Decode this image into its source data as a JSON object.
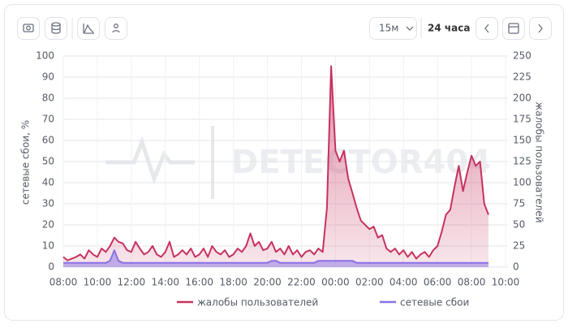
{
  "toolbar": {
    "interval": "15м",
    "range": "24 часа"
  },
  "watermark": "DETECTOR404",
  "chart_data": {
    "type": "line",
    "x": [
      8,
      8.25,
      8.5,
      8.75,
      9,
      9.25,
      9.5,
      9.75,
      10,
      10.25,
      10.5,
      10.75,
      11,
      11.25,
      11.5,
      11.75,
      12,
      12.25,
      12.5,
      12.75,
      13,
      13.25,
      13.5,
      13.75,
      14,
      14.25,
      14.5,
      14.75,
      15,
      15.25,
      15.5,
      15.75,
      16,
      16.25,
      16.5,
      16.75,
      17,
      17.25,
      17.5,
      17.75,
      18,
      18.25,
      18.5,
      18.75,
      19,
      19.25,
      19.5,
      19.75,
      20,
      20.25,
      20.5,
      20.75,
      21,
      21.25,
      21.5,
      21.75,
      22,
      22.25,
      22.5,
      22.75,
      23,
      23.25,
      23.5,
      23.75,
      24,
      24.25,
      24.5,
      24.75,
      25,
      25.25,
      25.5,
      25.75,
      26,
      26.25,
      26.5,
      26.75,
      27,
      27.25,
      27.5,
      27.75,
      28,
      28.25,
      28.5,
      28.75,
      29,
      29.25,
      29.5,
      29.75,
      30,
      30.25,
      30.5,
      30.75,
      31,
      31.25,
      31.5,
      31.75,
      32,
      32.25,
      32.5,
      32.75,
      33
    ],
    "xlim": [
      8,
      34
    ],
    "xticks": [
      {
        "value": 8,
        "label": "08:00"
      },
      {
        "value": 10,
        "label": "10:00"
      },
      {
        "value": 12,
        "label": "12:00"
      },
      {
        "value": 14,
        "label": "14:00"
      },
      {
        "value": 16,
        "label": "16:00"
      },
      {
        "value": 18,
        "label": "18:00"
      },
      {
        "value": 20,
        "label": "20:00"
      },
      {
        "value": 22,
        "label": "22:00"
      },
      {
        "value": 24,
        "label": "00:00"
      },
      {
        "value": 26,
        "label": "02:00"
      },
      {
        "value": 28,
        "label": "04:00"
      },
      {
        "value": 30,
        "label": "06:00"
      },
      {
        "value": 32,
        "label": "08:00"
      },
      {
        "value": 34,
        "label": "10:00"
      }
    ],
    "ylabel": "сетевые сбои, %",
    "ylim": [
      0,
      100
    ],
    "yticks": [
      0,
      10,
      20,
      30,
      40,
      50,
      60,
      70,
      80,
      90,
      100
    ],
    "y2label": "жалобы пользователей",
    "y2lim": [
      0,
      250
    ],
    "y2ticks": [
      0,
      25,
      50,
      75,
      100,
      125,
      150,
      175,
      200,
      225,
      250
    ],
    "grid": true,
    "series": [
      {
        "name": "жалобы пользователей",
        "color": "#c7325f",
        "axis": "y2",
        "values": [
          12,
          8,
          10,
          12,
          15,
          10,
          20,
          15,
          12,
          22,
          18,
          25,
          35,
          30,
          28,
          20,
          18,
          30,
          22,
          15,
          18,
          25,
          15,
          12,
          18,
          30,
          12,
          15,
          20,
          15,
          22,
          12,
          15,
          22,
          12,
          25,
          18,
          15,
          20,
          12,
          15,
          22,
          18,
          25,
          40,
          25,
          30,
          20,
          22,
          30,
          18,
          22,
          15,
          25,
          15,
          20,
          12,
          18,
          20,
          15,
          22,
          18,
          70,
          238,
          138,
          125,
          138,
          105,
          88,
          70,
          55,
          50,
          45,
          48,
          35,
          38,
          22,
          18,
          22,
          15,
          20,
          12,
          18,
          10,
          15,
          18,
          12,
          20,
          25,
          42,
          62,
          68,
          95,
          120,
          90,
          112,
          132,
          120,
          125,
          75,
          62
        ]
      },
      {
        "name": "сетевые сбои",
        "color": "#8a72e6",
        "values": [
          2,
          2,
          2,
          2,
          2,
          2,
          2,
          2,
          2,
          2,
          2,
          3,
          8,
          3,
          2,
          2,
          2,
          2,
          2,
          2,
          2,
          2,
          2,
          2,
          2,
          2,
          2,
          2,
          2,
          2,
          2,
          2,
          2,
          2,
          2,
          2,
          2,
          2,
          2,
          2,
          2,
          2,
          2,
          2,
          2,
          2,
          2,
          2,
          2,
          3,
          3,
          2,
          2,
          2,
          2,
          2,
          2,
          2,
          2,
          2,
          3,
          3,
          3,
          3,
          3,
          3,
          3,
          3,
          3,
          2,
          2,
          2,
          2,
          2,
          2,
          2,
          2,
          2,
          2,
          2,
          2,
          2,
          2,
          2,
          2,
          2,
          2,
          2,
          2,
          2,
          2,
          2,
          2,
          2,
          2,
          2,
          2,
          2,
          2,
          2,
          2
        ]
      }
    ]
  }
}
